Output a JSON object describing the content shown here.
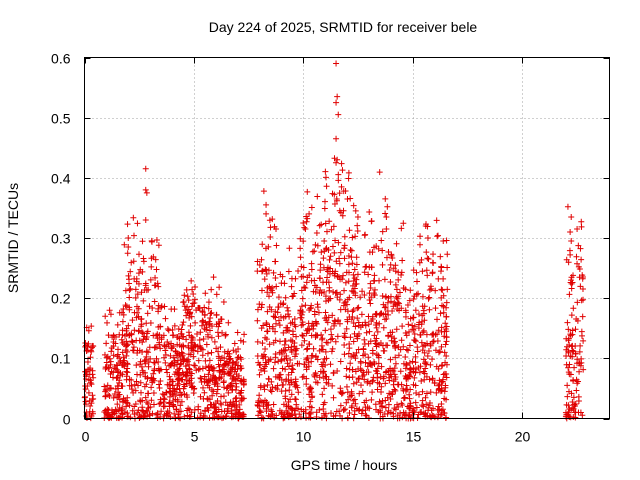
{
  "chart_data": {
    "type": "scatter",
    "title": "Day 224 of 2025, SRMTID for receiver bele",
    "xlabel": "GPS time / hours",
    "ylabel": "SRMTID / TECUs",
    "xlim": [
      0,
      24
    ],
    "ylim": [
      0,
      0.6
    ],
    "xticks": [
      0,
      5,
      10,
      15,
      20
    ],
    "yticks": [
      0,
      0.1,
      0.2,
      0.3,
      0.4,
      0.5,
      0.6
    ],
    "xtick_labels": [
      "0",
      "5",
      "10",
      "15",
      "20"
    ],
    "ytick_labels": [
      "0",
      "0.1",
      "0.2",
      "0.3",
      "0.4",
      "0.5",
      "0.6"
    ],
    "grid": true,
    "marker": "+",
    "color": "#e00000",
    "segments": [
      {
        "x_start": 0.0,
        "x_end": 0.4,
        "typical": 0.06,
        "spread": 0.08
      },
      {
        "x_start": 0.9,
        "x_end": 1.8,
        "typical": 0.06,
        "spread": 0.1
      },
      {
        "x_start": 1.8,
        "x_end": 2.5,
        "typical": 0.12,
        "spread": 0.18
      },
      {
        "x_start": 2.5,
        "x_end": 3.4,
        "typical": 0.1,
        "spread": 0.18
      },
      {
        "x_start": 3.4,
        "x_end": 4.5,
        "typical": 0.07,
        "spread": 0.1
      },
      {
        "x_start": 4.5,
        "x_end": 5.5,
        "typical": 0.09,
        "spread": 0.12
      },
      {
        "x_start": 5.5,
        "x_end": 6.6,
        "typical": 0.07,
        "spread": 0.12
      },
      {
        "x_start": 6.6,
        "x_end": 7.3,
        "typical": 0.05,
        "spread": 0.08
      },
      {
        "x_start": 7.9,
        "x_end": 8.8,
        "typical": 0.1,
        "spread": 0.2
      },
      {
        "x_start": 8.8,
        "x_end": 9.8,
        "typical": 0.09,
        "spread": 0.14
      },
      {
        "x_start": 9.8,
        "x_end": 11.0,
        "typical": 0.14,
        "spread": 0.2
      },
      {
        "x_start": 11.0,
        "x_end": 12.2,
        "typical": 0.16,
        "spread": 0.22
      },
      {
        "x_start": 12.2,
        "x_end": 13.3,
        "typical": 0.13,
        "spread": 0.18
      },
      {
        "x_start": 13.3,
        "x_end": 14.6,
        "typical": 0.12,
        "spread": 0.2
      },
      {
        "x_start": 14.6,
        "x_end": 15.3,
        "typical": 0.08,
        "spread": 0.14
      },
      {
        "x_start": 15.3,
        "x_end": 16.6,
        "typical": 0.12,
        "spread": 0.18
      },
      {
        "x_start": 22.0,
        "x_end": 22.8,
        "typical": 0.1,
        "spread": 0.2
      }
    ],
    "notable_points": [
      {
        "x": 11.5,
        "y": 0.59
      },
      {
        "x": 11.55,
        "y": 0.535
      },
      {
        "x": 11.5,
        "y": 0.525
      },
      {
        "x": 11.6,
        "y": 0.505
      },
      {
        "x": 11.5,
        "y": 0.465
      },
      {
        "x": 11.55,
        "y": 0.43
      },
      {
        "x": 11.5,
        "y": 0.425
      },
      {
        "x": 2.8,
        "y": 0.415
      },
      {
        "x": 2.8,
        "y": 0.38
      },
      {
        "x": 2.85,
        "y": 0.375
      },
      {
        "x": 2.8,
        "y": 0.33
      },
      {
        "x": 8.2,
        "y": 0.378
      },
      {
        "x": 8.3,
        "y": 0.355
      },
      {
        "x": 8.3,
        "y": 0.34
      },
      {
        "x": 11.75,
        "y": 0.385
      },
      {
        "x": 11.85,
        "y": 0.378
      },
      {
        "x": 13.75,
        "y": 0.365
      },
      {
        "x": 13.8,
        "y": 0.335
      },
      {
        "x": 13.8,
        "y": 0.315
      },
      {
        "x": 10.0,
        "y": 0.325
      },
      {
        "x": 10.1,
        "y": 0.315
      },
      {
        "x": 12.4,
        "y": 0.345
      },
      {
        "x": 12.5,
        "y": 0.335
      },
      {
        "x": 15.6,
        "y": 0.32
      },
      {
        "x": 15.7,
        "y": 0.3
      },
      {
        "x": 16.4,
        "y": 0.295
      },
      {
        "x": 2.0,
        "y": 0.3
      },
      {
        "x": 2.0,
        "y": 0.285
      },
      {
        "x": 3.4,
        "y": 0.288
      },
      {
        "x": 5.9,
        "y": 0.235
      },
      {
        "x": 22.1,
        "y": 0.352
      },
      {
        "x": 22.25,
        "y": 0.335
      },
      {
        "x": 22.2,
        "y": 0.31
      },
      {
        "x": 22.25,
        "y": 0.295
      },
      {
        "x": 22.6,
        "y": 0.252
      },
      {
        "x": 14.8,
        "y": 0.0
      },
      {
        "x": 14.9,
        "y": 0.0
      }
    ]
  }
}
